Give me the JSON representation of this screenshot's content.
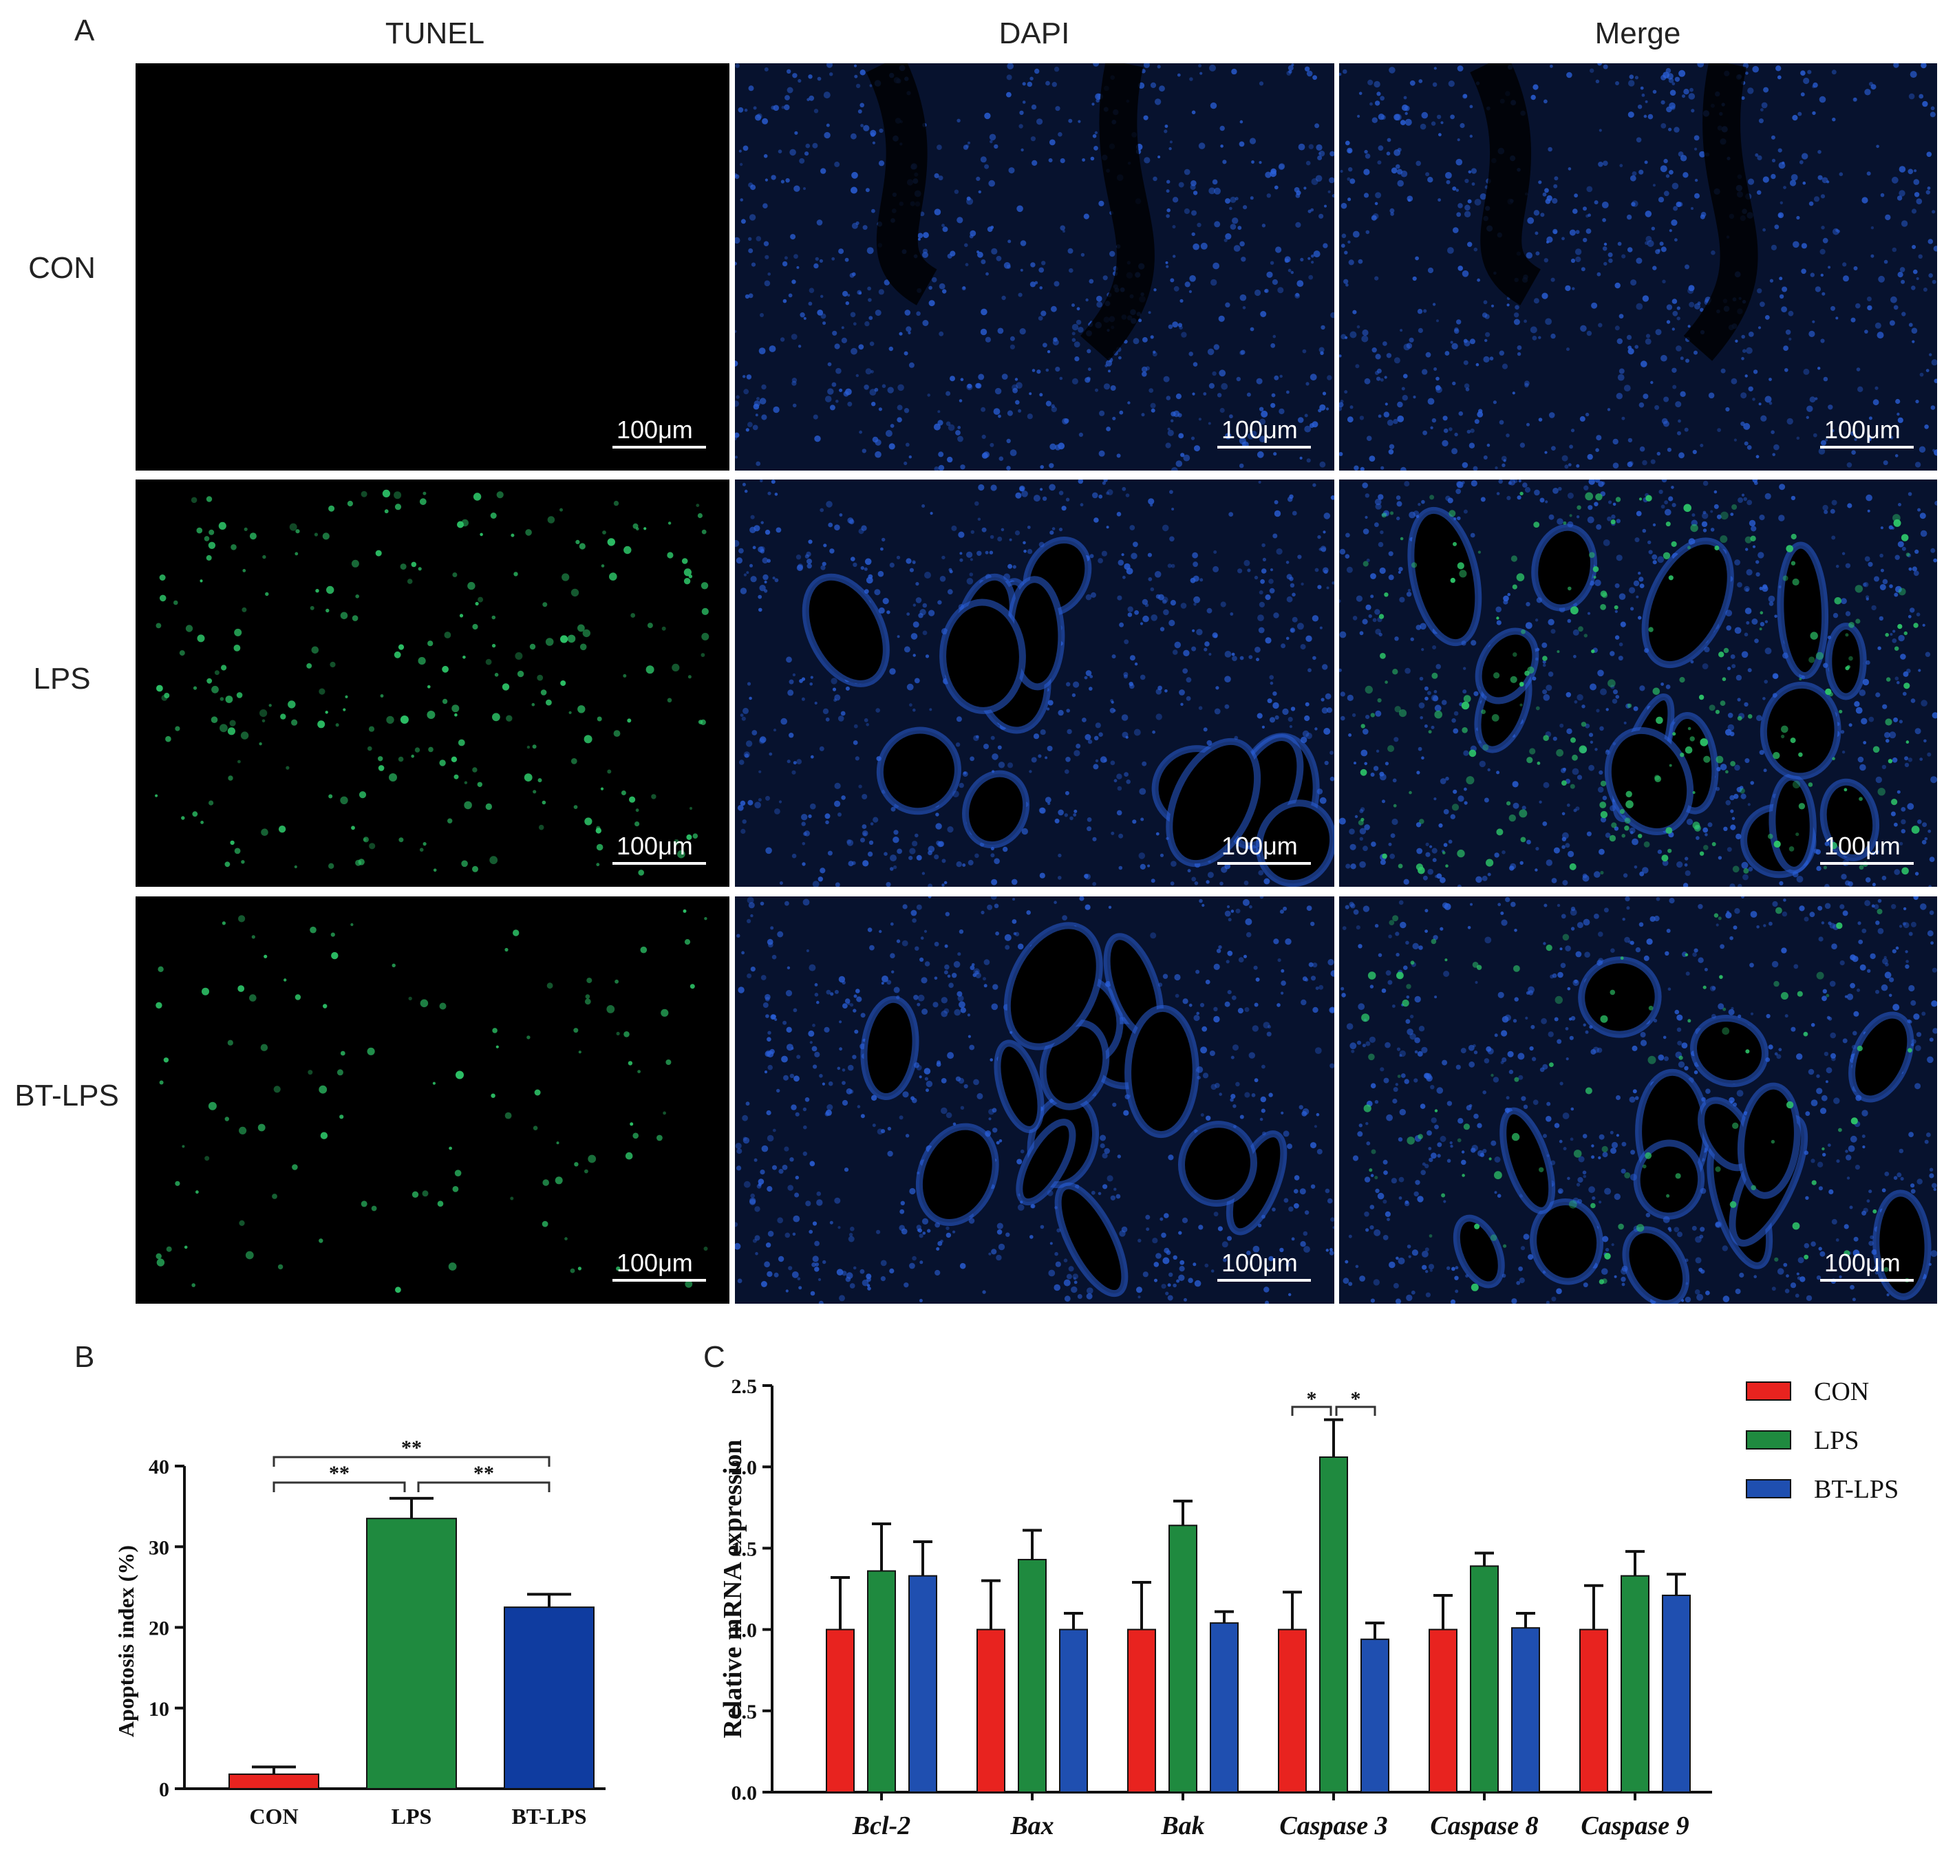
{
  "panels": {
    "a": {
      "letter": "A",
      "columns": [
        "TUNEL",
        "DAPI",
        "Merge"
      ],
      "rows": [
        "CON",
        "LPS",
        "BT-LPS"
      ],
      "scale_bar": "100μm",
      "colors": {
        "tunel": "#2ec86a",
        "dapi": "#2a5fd8",
        "background": "#000000"
      }
    },
    "b": {
      "letter": "B"
    },
    "c": {
      "letter": "C"
    }
  },
  "chart_data": [
    {
      "type": "bar",
      "categories": [
        "CON",
        "LPS",
        "BT-LPS"
      ],
      "values": [
        1.8,
        33.5,
        22.5
      ],
      "errors": [
        0.9,
        2.5,
        1.6
      ],
      "colors": [
        "#e8231f",
        "#1f8a3f",
        "#0f3ca0"
      ],
      "ylabel": "Apoptosis index (%)",
      "ylim": [
        0,
        40
      ],
      "yticks": [
        0,
        10,
        20,
        30,
        40
      ],
      "significance": [
        {
          "from": "CON",
          "to": "LPS",
          "label": "**"
        },
        {
          "from": "LPS",
          "to": "BT-LPS",
          "label": "**"
        },
        {
          "from": "CON",
          "to": "BT-LPS",
          "label": "**"
        }
      ],
      "grid": false
    },
    {
      "type": "bar",
      "categories": [
        "Bcl-2",
        "Bax",
        "Bak",
        "Caspase 3",
        "Caspase 8",
        "Caspase 9"
      ],
      "series": [
        {
          "name": "CON",
          "color": "#e8231f",
          "values": [
            1.0,
            1.0,
            1.0,
            1.0,
            1.0,
            1.0
          ],
          "errors": [
            0.32,
            0.3,
            0.29,
            0.23,
            0.21,
            0.27
          ]
        },
        {
          "name": "LPS",
          "color": "#1f8a3f",
          "values": [
            1.36,
            1.43,
            1.64,
            2.06,
            1.39,
            1.33
          ],
          "errors": [
            0.29,
            0.18,
            0.15,
            0.23,
            0.08,
            0.15
          ]
        },
        {
          "name": "BT-LPS",
          "color": "#1f4fb0",
          "values": [
            1.33,
            1.0,
            1.04,
            0.94,
            1.01,
            1.21
          ],
          "errors": [
            0.21,
            0.1,
            0.07,
            0.1,
            0.09,
            0.13
          ]
        }
      ],
      "ylabel": "Relative mRNA expression",
      "ylim": [
        0,
        2.5
      ],
      "yticks": [
        "0.0",
        "0.5",
        "1.0",
        "1.5",
        "2.0",
        "2.5"
      ],
      "significance": [
        {
          "category": "Caspase 3",
          "from": "CON",
          "to": "LPS",
          "label": "*"
        },
        {
          "category": "Caspase 3",
          "from": "LPS",
          "to": "BT-LPS",
          "label": "*"
        }
      ],
      "legend_position": "top-right",
      "grid": false
    }
  ]
}
